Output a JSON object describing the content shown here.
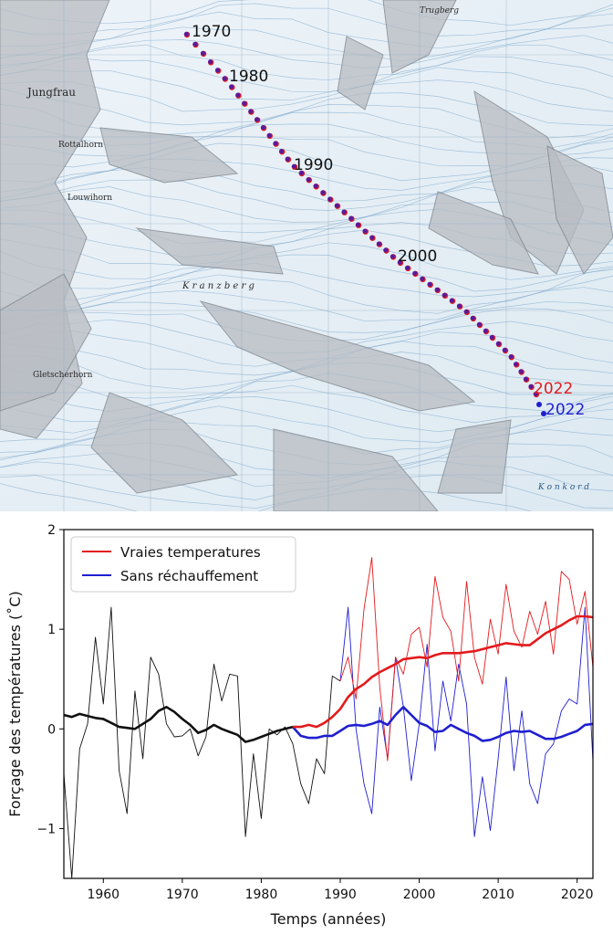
{
  "map": {
    "place_labels": [
      {
        "key": "jungfrau",
        "text": "Jungfrau"
      },
      {
        "key": "rottalhorn",
        "text": "Rottalhorn"
      },
      {
        "key": "louwihorn",
        "text": "Louwihorn"
      },
      {
        "key": "kranzberg",
        "text": "K r a n z b e r g"
      },
      {
        "key": "gletscherhorn",
        "text": "Gletscherhorn"
      },
      {
        "key": "trugberg",
        "text": "Trugberg"
      },
      {
        "key": "konkordia",
        "text": "K o n k o r d"
      }
    ],
    "trajectory": {
      "start_year": 1970,
      "end_year": 2022,
      "year_labels": [
        "1970",
        "1980",
        "1990",
        "2000"
      ],
      "end_label_real": "2022",
      "end_label_nowarming": "2022",
      "real_color": "#e31a1c",
      "nowarming_color": "#1f1fd0",
      "overlap_color": "#5a1a9a"
    }
  },
  "chart_data": {
    "type": "line",
    "xlabel": "Temps (années)",
    "ylabel": "Forçage des températures (˚C)",
    "xlim": [
      1955,
      2022
    ],
    "ylim": [
      -1.5,
      2.0
    ],
    "xticks": [
      1960,
      1970,
      1980,
      1990,
      2000,
      2010,
      2020
    ],
    "yticks": [
      -1,
      0,
      1,
      2
    ],
    "legend_position": "upper-left",
    "series": [
      {
        "name": "Vraies temperatures",
        "color": "#e31a1c"
      },
      {
        "name": "Sans réchauffement",
        "color": "#1f1fd0"
      }
    ],
    "shared_color": "#111111",
    "annual_shared": {
      "x": [
        1955,
        1956,
        1957,
        1958,
        1959,
        1960,
        1961,
        1962,
        1963,
        1964,
        1965,
        1966,
        1967,
        1968,
        1969,
        1970,
        1971,
        1972,
        1973,
        1974,
        1975,
        1976,
        1977,
        1978,
        1979,
        1980,
        1981,
        1982,
        1983,
        1984,
        1985,
        1986,
        1987,
        1988,
        1989,
        1990
      ],
      "y": [
        -0.45,
        -1.5,
        -0.2,
        0.05,
        0.92,
        0.25,
        1.22,
        -0.42,
        -0.85,
        0.38,
        -0.3,
        0.72,
        0.55,
        0.05,
        -0.08,
        -0.07,
        0.0,
        -0.27,
        -0.08,
        0.65,
        0.28,
        0.55,
        0.53,
        -1.08,
        -0.25,
        -0.9,
        0.0,
        -0.06,
        0.02,
        -0.15,
        -0.55,
        -0.75,
        -0.3,
        -0.45,
        0.53,
        0.48
      ]
    },
    "annual_real": {
      "x": [
        1990,
        1991,
        1992,
        1993,
        1994,
        1995,
        1996,
        1997,
        1998,
        1999,
        2000,
        2001,
        2002,
        2003,
        2004,
        2005,
        2006,
        2007,
        2008,
        2009,
        2010,
        2011,
        2012,
        2013,
        2014,
        2015,
        2016,
        2017,
        2018,
        2019,
        2020,
        2021,
        2022
      ],
      "y": [
        0.48,
        0.72,
        0.3,
        1.2,
        1.72,
        0.42,
        -0.32,
        0.72,
        0.55,
        0.95,
        1.02,
        0.62,
        1.53,
        1.12,
        0.98,
        0.48,
        1.48,
        0.72,
        0.45,
        1.1,
        0.75,
        1.45,
        0.98,
        0.82,
        1.18,
        0.95,
        1.28,
        0.75,
        1.58,
        1.5,
        1.05,
        1.38,
        0.62
      ]
    },
    "annual_nowarming": {
      "x": [
        1990,
        1991,
        1992,
        1993,
        1994,
        1995,
        1996,
        1997,
        1998,
        1999,
        2000,
        2001,
        2002,
        2003,
        2004,
        2005,
        2006,
        2007,
        2008,
        2009,
        2010,
        2011,
        2012,
        2013,
        2014,
        2015,
        2016,
        2017,
        2018,
        2019,
        2020,
        2021,
        2022
      ],
      "y": [
        0.48,
        1.22,
        0.0,
        -0.55,
        -0.85,
        0.22,
        -0.3,
        0.72,
        0.22,
        -0.52,
        0.05,
        0.85,
        -0.22,
        0.48,
        0.08,
        0.65,
        0.25,
        -1.08,
        -0.48,
        -1.02,
        -0.3,
        0.52,
        -0.42,
        0.18,
        -0.55,
        -0.75,
        -0.25,
        -0.15,
        0.18,
        0.3,
        0.25,
        1.22,
        -0.32
      ]
    },
    "smooth_shared": {
      "x": [
        1955,
        1956,
        1957,
        1958,
        1959,
        1960,
        1961,
        1962,
        1963,
        1964,
        1965,
        1966,
        1967,
        1968,
        1969,
        1970,
        1971,
        1972,
        1973,
        1974,
        1975,
        1976,
        1977,
        1978,
        1979,
        1980,
        1981,
        1982,
        1983,
        1984
      ],
      "y": [
        0.14,
        0.12,
        0.15,
        0.13,
        0.11,
        0.1,
        0.06,
        0.02,
        0.01,
        0.0,
        0.05,
        0.1,
        0.18,
        0.22,
        0.17,
        0.1,
        0.04,
        -0.04,
        -0.01,
        0.04,
        0.0,
        -0.03,
        -0.06,
        -0.13,
        -0.11,
        -0.08,
        -0.05,
        -0.02,
        0.0,
        0.02
      ]
    },
    "smooth_real": {
      "x": [
        1984,
        1985,
        1986,
        1987,
        1988,
        1989,
        1990,
        1991,
        1992,
        1993,
        1994,
        1995,
        1996,
        1997,
        1998,
        1999,
        2000,
        2001,
        2002,
        2003,
        2004,
        2005,
        2006,
        2007,
        2008,
        2009,
        2010,
        2011,
        2012,
        2013,
        2014,
        2015,
        2016,
        2017,
        2018,
        2019,
        2020,
        2021,
        2022
      ],
      "y": [
        0.02,
        0.02,
        0.04,
        0.02,
        0.06,
        0.12,
        0.2,
        0.32,
        0.4,
        0.45,
        0.52,
        0.57,
        0.61,
        0.65,
        0.7,
        0.71,
        0.72,
        0.71,
        0.74,
        0.76,
        0.76,
        0.76,
        0.77,
        0.78,
        0.8,
        0.82,
        0.84,
        0.86,
        0.85,
        0.84,
        0.84,
        0.9,
        0.96,
        1.0,
        1.04,
        1.09,
        1.13,
        1.13,
        1.12
      ]
    },
    "smooth_nowarming": {
      "x": [
        1984,
        1985,
        1986,
        1987,
        1988,
        1989,
        1990,
        1991,
        1992,
        1993,
        1994,
        1995,
        1996,
        1997,
        1998,
        1999,
        2000,
        2001,
        2002,
        2003,
        2004,
        2005,
        2006,
        2007,
        2008,
        2009,
        2010,
        2011,
        2012,
        2013,
        2014,
        2015,
        2016,
        2017,
        2018,
        2019,
        2020,
        2021,
        2022
      ],
      "y": [
        0.02,
        -0.07,
        -0.09,
        -0.09,
        -0.07,
        -0.07,
        -0.02,
        0.03,
        0.04,
        0.03,
        0.05,
        0.08,
        0.04,
        0.14,
        0.22,
        0.14,
        0.06,
        0.03,
        -0.03,
        -0.02,
        0.04,
        0.0,
        -0.04,
        -0.07,
        -0.12,
        -0.11,
        -0.08,
        -0.04,
        -0.02,
        -0.03,
        -0.02,
        -0.06,
        -0.1,
        -0.1,
        -0.08,
        -0.05,
        -0.02,
        0.04,
        0.05
      ]
    }
  }
}
